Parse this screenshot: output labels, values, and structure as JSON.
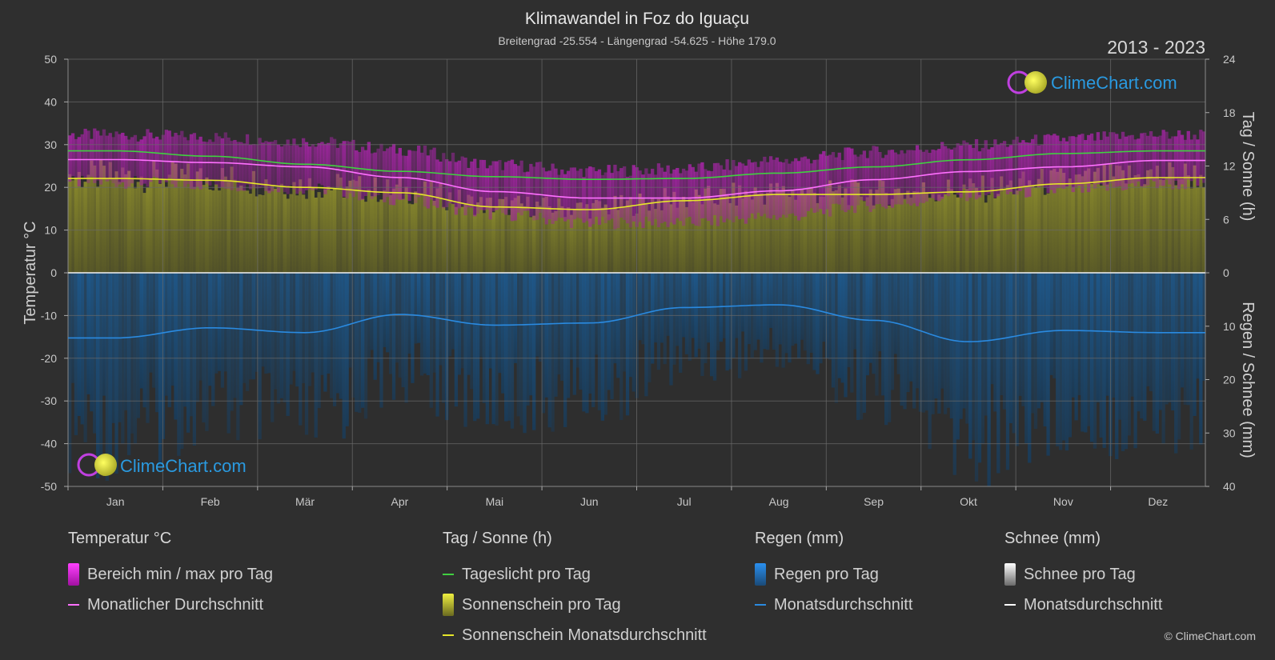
{
  "header": {
    "title": "Klimawandel in Foz do Iguaçu",
    "subtitle": "Breitengrad -25.554 - Längengrad -54.625 - Höhe 179.0",
    "years": "2013 - 2023"
  },
  "logo": {
    "text": "ClimeChart.com"
  },
  "copyright": "© ClimeChart.com",
  "colors": {
    "background": "#2f2f2f",
    "temp_range": "#c020c0",
    "temp_avg": "#ff70ff",
    "daylight": "#40d040",
    "sunshine_bar": "#8a8a2a",
    "sunshine_avg": "#e6e62a",
    "rain_bar": "#1a5a90",
    "rain_avg": "#2a8ae0",
    "snow_avg": "#ffffff"
  },
  "chart_data": {
    "type": "line",
    "title": "Klimawandel in Foz do Iguaçu",
    "months": [
      "Jan",
      "Feb",
      "Mär",
      "Apr",
      "Mai",
      "Jun",
      "Jul",
      "Aug",
      "Sep",
      "Okt",
      "Nov",
      "Dez"
    ],
    "axes": {
      "left": {
        "label": "Temperatur °C",
        "range": [
          -50,
          50
        ],
        "ticks": [
          "50",
          "40",
          "30",
          "20",
          "10",
          "0",
          "-10",
          "-20",
          "-30",
          "-40",
          "-50"
        ]
      },
      "right_top": {
        "label": "Tag / Sonne (h)",
        "range": [
          0,
          24
        ],
        "ticks": [
          "24",
          "18",
          "12",
          "6",
          "0"
        ]
      },
      "right_bottom": {
        "label": "Regen / Schnee (mm)",
        "range": [
          0,
          40
        ],
        "ticks": [
          "0",
          "10",
          "20",
          "30",
          "40"
        ]
      }
    },
    "grid": true,
    "series": [
      {
        "name": "Tageslicht pro Tag",
        "unit": "h",
        "values": [
          13.7,
          13.1,
          12.2,
          11.4,
          10.8,
          10.5,
          10.6,
          11.2,
          11.9,
          12.7,
          13.4,
          13.7
        ]
      },
      {
        "name": "Sonnenschein Monatsdurchschnitt",
        "unit": "h",
        "values": [
          10.6,
          10.4,
          9.6,
          9.0,
          7.4,
          7.1,
          8.1,
          8.8,
          8.8,
          9.1,
          10.0,
          10.7
        ]
      },
      {
        "name": "Monatlicher Durchschnitt",
        "unit": "°C",
        "values": [
          26.5,
          25.8,
          24.8,
          22.3,
          19.0,
          17.5,
          17.5,
          19.2,
          21.8,
          23.7,
          24.8,
          26.3
        ]
      },
      {
        "name": "Bereich min / max pro Tag",
        "unit": "°C",
        "max": [
          32.0,
          31.5,
          30.5,
          28.5,
          25.0,
          23.5,
          24.0,
          26.0,
          28.0,
          29.5,
          31.0,
          32.0
        ],
        "min": [
          21.5,
          21.0,
          20.0,
          17.5,
          14.0,
          12.0,
          12.0,
          13.5,
          16.0,
          18.5,
          19.5,
          21.0
        ]
      },
      {
        "name": "Regen Monatsdurchschnitt",
        "unit": "mm",
        "values": [
          12.2,
          10.3,
          11.2,
          7.8,
          9.8,
          9.4,
          6.5,
          6.0,
          8.9,
          12.9,
          10.8,
          11.2
        ]
      },
      {
        "name": "Schnee Monatsdurchschnitt",
        "unit": "mm",
        "values": [
          0,
          0,
          0,
          0,
          0,
          0,
          0,
          0,
          0,
          0,
          0,
          0
        ]
      }
    ]
  },
  "legend": {
    "groups": [
      {
        "title": "Temperatur °C",
        "items": [
          {
            "label": "Bereich min / max pro Tag",
            "kind": "box",
            "color": "#c020c0"
          },
          {
            "label": "Monatlicher Durchschnitt",
            "kind": "line",
            "color": "#ff70ff"
          }
        ]
      },
      {
        "title": "Tag / Sonne (h)",
        "items": [
          {
            "label": "Tageslicht pro Tag",
            "kind": "line",
            "color": "#40d040"
          },
          {
            "label": "Sonnenschein pro Tag",
            "kind": "box",
            "color": "#b8b830"
          },
          {
            "label": "Sonnenschein Monatsdurchschnitt",
            "kind": "line",
            "color": "#e6e62a"
          }
        ]
      },
      {
        "title": "Regen (mm)",
        "items": [
          {
            "label": "Regen pro Tag",
            "kind": "box",
            "color": "#1e78c8"
          },
          {
            "label": "Monatsdurchschnitt",
            "kind": "line",
            "color": "#2a8ae0"
          }
        ]
      },
      {
        "title": "Schnee (mm)",
        "items": [
          {
            "label": "Schnee pro Tag",
            "kind": "box",
            "color": "#d8d8d8"
          },
          {
            "label": "Monatsdurchschnitt",
            "kind": "line",
            "color": "#ffffff"
          }
        ]
      }
    ]
  }
}
